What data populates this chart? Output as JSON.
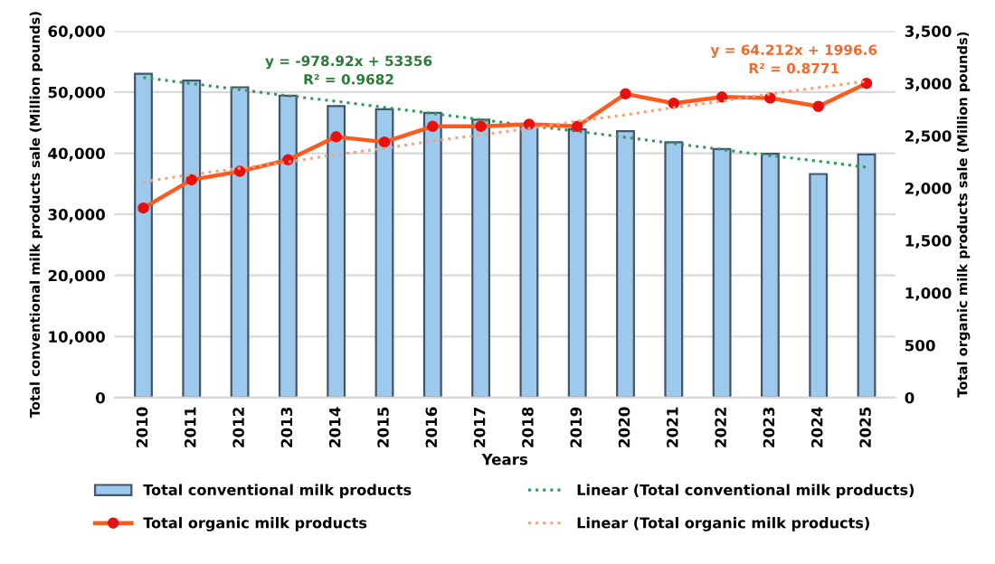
{
  "chart_data": {
    "type": "bar",
    "xlabel": "Years",
    "ylabel": "Total conventional milk products sale (Million pounds)",
    "y2label": "Total organic milk products sale (Million pounds)",
    "categories": [
      "2010",
      "2011",
      "2012",
      "2013",
      "2014",
      "2015",
      "2016",
      "2017",
      "2018",
      "2019",
      "2020",
      "2021",
      "2022",
      "2023",
      "2024",
      "2025"
    ],
    "series": [
      {
        "name": "Total conventional milk products",
        "color": "#9dc9ec",
        "values": [
          53000,
          51900,
          50800,
          49400,
          47700,
          47200,
          46600,
          45500,
          44700,
          43900,
          43600,
          41800,
          40700,
          39900,
          36600,
          39800
        ]
      },
      {
        "name": "Total organic milk products",
        "type": "line",
        "axis": "y2",
        "color": "#fc5a1e",
        "marker": "circle",
        "line_style": "solid",
        "values": [
          1810,
          2080,
          2160,
          2270,
          2490,
          2440,
          2590,
          2590,
          2610,
          2590,
          2900,
          2810,
          2870,
          2860,
          2780,
          3000
        ]
      },
      {
        "name": "Linear (Total conventional milk products)",
        "type": "line",
        "color": "#2e9a5a",
        "marker": "none",
        "line_style": "dotted",
        "values": [
          52400,
          51400,
          50400,
          49400,
          48500,
          47500,
          46500,
          45500,
          44500,
          43600,
          42600,
          41600,
          40600,
          39600,
          38700,
          37700
        ]
      },
      {
        "name": "Linear (Total organic milk products)",
        "type": "line",
        "axis": "y2",
        "color": "#f7a07a",
        "marker": "none",
        "line_style": "dotted",
        "values": [
          2060,
          2130,
          2190,
          2250,
          2320,
          2380,
          2450,
          2510,
          2570,
          2640,
          2700,
          2770,
          2830,
          2900,
          2960,
          3020
        ]
      }
    ],
    "ylim": [
      0,
      60000
    ],
    "yticks": [
      {
        "value": 0,
        "label": "0"
      },
      {
        "value": 10000,
        "label": "10,000"
      },
      {
        "value": 20000,
        "label": "20,000"
      },
      {
        "value": 30000,
        "label": "30,000"
      },
      {
        "value": 40000,
        "label": "40,000"
      },
      {
        "value": 50000,
        "label": "50,000"
      },
      {
        "value": 60000,
        "label": "60,000"
      }
    ],
    "y2lim": [
      0,
      3500
    ],
    "y2ticks": [
      {
        "value": 0,
        "label": "0"
      },
      {
        "value": 500,
        "label": "500"
      },
      {
        "value": 1000,
        "label": "1,000"
      },
      {
        "value": 1500,
        "label": "1,500"
      },
      {
        "value": 2000,
        "label": "2,000"
      },
      {
        "value": 2500,
        "label": "2,500"
      },
      {
        "value": 3000,
        "label": "3,000"
      },
      {
        "value": 3500,
        "label": "3,500"
      }
    ],
    "annotations": [
      "y = -978.92x + 53356",
      "R² = 0.9682",
      "y = 64.212x + 1996.6",
      "R² = 0.8771"
    ],
    "grid": "y",
    "legend": "bottom"
  }
}
